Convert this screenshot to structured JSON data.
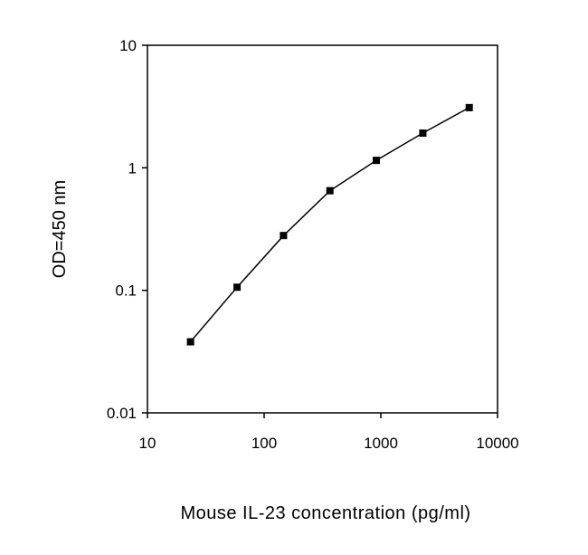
{
  "chart_data": {
    "type": "line",
    "title": "",
    "xlabel": "Mouse IL-23 concentration (pg/ml)",
    "ylabel": "OD=450 nm",
    "xscale": "log",
    "yscale": "log",
    "xlim": [
      10,
      10000
    ],
    "ylim": [
      0.01,
      10
    ],
    "xticks": [
      10,
      100,
      1000,
      10000
    ],
    "xtick_labels": [
      "10",
      "100",
      "1000",
      "10000"
    ],
    "yticks": [
      0.01,
      0.1,
      1,
      10
    ],
    "ytick_labels": [
      "0.01",
      "0.1",
      "1",
      "10"
    ],
    "grid": false,
    "legend": "none",
    "series": [
      {
        "x": [
          23.4,
          58.6,
          146.5,
          366,
          915,
          2290,
          5720
        ],
        "y": [
          0.038,
          0.106,
          0.28,
          0.65,
          1.15,
          1.92,
          3.1
        ],
        "color": "#000000",
        "marker": "square"
      }
    ]
  }
}
